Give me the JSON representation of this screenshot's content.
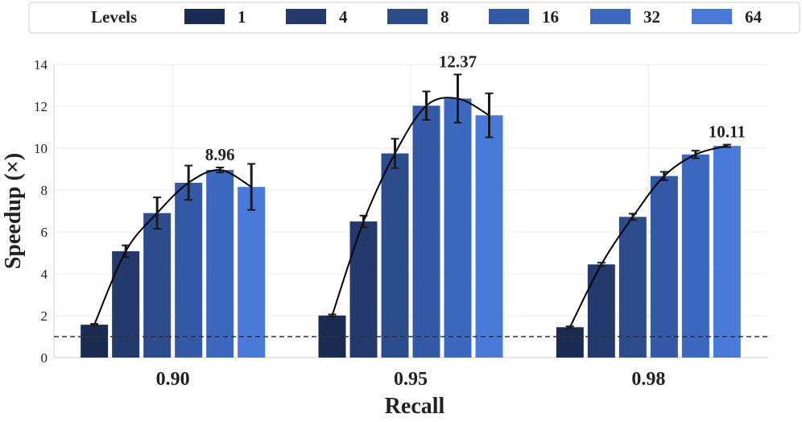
{
  "chart_data": {
    "type": "bar",
    "title": "",
    "xlabel": "Recall",
    "ylabel": "Speedup (×)",
    "ylim": [
      0,
      14
    ],
    "yticks": [
      0,
      2,
      4,
      6,
      8,
      10,
      12,
      14
    ],
    "grid": true,
    "legend_title": "Levels",
    "legend_position": "top",
    "categories": [
      "0.90",
      "0.95",
      "0.98"
    ],
    "baseline": 1,
    "series": [
      {
        "name": "1",
        "color": "#1c2b52",
        "values": [
          1.57,
          2.01,
          1.45
        ],
        "errors": [
          0.04,
          0.05,
          0.04
        ]
      },
      {
        "name": "4",
        "color": "#243a6d",
        "values": [
          5.08,
          6.5,
          4.45
        ],
        "errors": [
          0.28,
          0.28,
          0.08
        ]
      },
      {
        "name": "8",
        "color": "#2d4c8c",
        "values": [
          6.9,
          9.75,
          6.72
        ],
        "errors": [
          0.75,
          0.7,
          0.15
        ]
      },
      {
        "name": "16",
        "color": "#3459a6",
        "values": [
          8.35,
          12.03,
          8.67
        ],
        "errors": [
          0.82,
          0.68,
          0.2
        ]
      },
      {
        "name": "32",
        "color": "#3d68bf",
        "values": [
          8.96,
          12.37,
          9.7
        ],
        "errors": [
          0.12,
          1.15,
          0.18
        ]
      },
      {
        "name": "64",
        "color": "#4a7ad9",
        "values": [
          8.15,
          11.57,
          10.11
        ],
        "errors": [
          1.1,
          1.05,
          0.06
        ]
      }
    ],
    "trend_line": [
      {
        "category": "0.90",
        "values": [
          1.57,
          5.08,
          6.9,
          8.35,
          8.96,
          8.15
        ]
      },
      {
        "category": "0.95",
        "values": [
          2.01,
          6.5,
          9.75,
          12.03,
          12.37,
          11.57
        ]
      },
      {
        "category": "0.98",
        "values": [
          1.45,
          4.45,
          6.72,
          8.67,
          9.7,
          10.11
        ]
      }
    ],
    "annotations": [
      {
        "category": "0.90",
        "series": "32",
        "text": "8.96"
      },
      {
        "category": "0.95",
        "series": "32",
        "text": "12.37"
      },
      {
        "category": "0.98",
        "series": "64",
        "text": "10.11"
      }
    ]
  }
}
